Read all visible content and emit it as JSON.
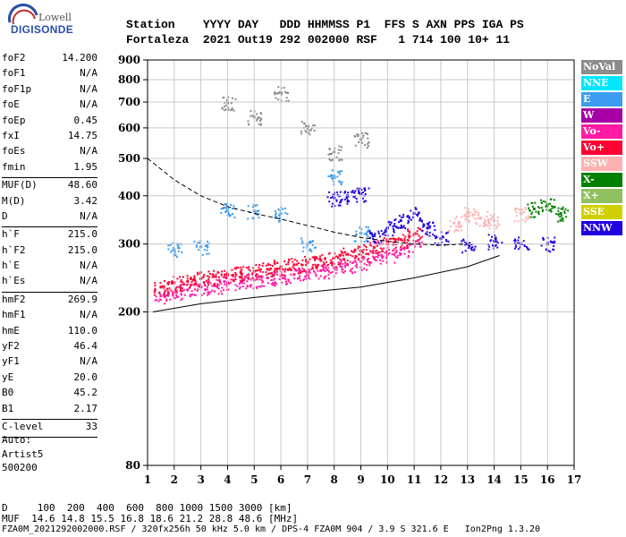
{
  "logo": {
    "line1": "Lowell",
    "line2": "DIGISONDE"
  },
  "header": {
    "labels": "Station    YYYY DAY   DDD HHMMSS P1  FFS S AXN PPS IGA PS",
    "values": "Fortaleza  2021 Out19 292 002000 RSF   1 714 100 10+ 11"
  },
  "params": [
    {
      "name": "foF2",
      "value": "14.200"
    },
    {
      "name": "foF1",
      "value": "N/A"
    },
    {
      "name": "foF1p",
      "value": "N/A"
    },
    {
      "name": "foE",
      "value": "N/A"
    },
    {
      "name": "foEp",
      "value": "0.45"
    },
    {
      "name": "fxI",
      "value": "14.75"
    },
    {
      "name": "foEs",
      "value": "N/A"
    },
    {
      "name": "fmin",
      "value": "1.95"
    },
    {
      "sep": true
    },
    {
      "name": "MUF(D)",
      "value": "48.60"
    },
    {
      "name": "M(D)",
      "value": "3.42"
    },
    {
      "name": "D",
      "value": "N/A"
    },
    {
      "sep": true
    },
    {
      "name": "h`F",
      "value": "215.0"
    },
    {
      "name": "h`F2",
      "value": "215.0"
    },
    {
      "name": "h`E",
      "value": "N/A"
    },
    {
      "name": "h`Es",
      "value": "N/A"
    },
    {
      "sep": true
    },
    {
      "name": "hmF2",
      "value": "269.9"
    },
    {
      "name": "hmF1",
      "value": "N/A"
    },
    {
      "name": "hmE",
      "value": "110.0"
    },
    {
      "name": "yF2",
      "value": "46.4"
    },
    {
      "name": "yF1",
      "value": "N/A"
    },
    {
      "name": "yE",
      "value": "20.0"
    },
    {
      "name": "B0",
      "value": "45.2"
    },
    {
      "name": "B1",
      "value": "2.17"
    },
    {
      "sep": true
    },
    {
      "name": "C-level",
      "value": "33"
    },
    {
      "sep": true
    }
  ],
  "auto": {
    "line1": "Auto:",
    "line2": "Artist5",
    "line3": "500200"
  },
  "legend": [
    {
      "label": "NoVal",
      "color": "#8c8c8c"
    },
    {
      "label": "NNE",
      "color": "#00e6ff"
    },
    {
      "label": "E",
      "color": "#3c9cf0"
    },
    {
      "label": "W",
      "color": "#a600a6"
    },
    {
      "label": "Vo-",
      "color": "#ff1aa3"
    },
    {
      "label": "Vo+",
      "color": "#ff0033"
    },
    {
      "label": "SSW",
      "color": "#ffb0b0"
    },
    {
      "label": "X-",
      "color": "#008000"
    },
    {
      "label": "X+",
      "color": "#90c060"
    },
    {
      "label": "SSE",
      "color": "#d0d000"
    },
    {
      "label": "NNW",
      "color": "#2000e0"
    }
  ],
  "footer": {
    "line1": "D     100  200  400  600  800 1000 1500 3000 [km]",
    "line2": "MUF  14.6 14.8 15.5 16.8 18.6 21.2 28.8 48.6 [MHz]",
    "line3": "FZA0M_2021292002000.RSF / 320fx256h 50 kHz 5.0 km / DPS-4 FZA0M 904 / 3.9 S 321.6 E   Ion2Png 1.3.20"
  },
  "chart_data": {
    "type": "scatter",
    "title": "",
    "xlabel": "",
    "ylabel": "",
    "xlim": [
      1,
      17
    ],
    "ylim": [
      80,
      900
    ],
    "yscale": "log",
    "x_ticks": [
      1,
      2,
      3,
      4,
      5,
      6,
      7,
      8,
      9,
      10,
      11,
      12,
      13,
      14,
      15,
      16,
      17
    ],
    "y_ticks": [
      80,
      200,
      300,
      400,
      500,
      600,
      700,
      800,
      900
    ],
    "grid": true,
    "series": [
      {
        "name": "Vo-",
        "points": [
          [
            1.5,
            220
          ],
          [
            2,
            225
          ],
          [
            2.5,
            228
          ],
          [
            3,
            232
          ],
          [
            3.5,
            234
          ],
          [
            4,
            238
          ],
          [
            4.5,
            240
          ],
          [
            5,
            242
          ],
          [
            5.5,
            245
          ],
          [
            6,
            248
          ],
          [
            6.5,
            250
          ],
          [
            7,
            253
          ],
          [
            7.5,
            256
          ],
          [
            8,
            260
          ],
          [
            8.5,
            265
          ],
          [
            9,
            270
          ],
          [
            9.5,
            276
          ],
          [
            10,
            282
          ],
          [
            10.5,
            290
          ],
          [
            11,
            300
          ]
        ]
      },
      {
        "name": "Vo+",
        "points": [
          [
            1.5,
            232
          ],
          [
            2,
            238
          ],
          [
            2.5,
            240
          ],
          [
            3,
            244
          ],
          [
            3.5,
            247
          ],
          [
            4,
            250
          ],
          [
            4.5,
            253
          ],
          [
            5,
            255
          ],
          [
            5.5,
            258
          ],
          [
            6,
            262
          ],
          [
            6.5,
            265
          ],
          [
            7,
            268
          ],
          [
            7.5,
            272
          ],
          [
            8,
            276
          ],
          [
            8.5,
            282
          ],
          [
            9,
            288
          ],
          [
            9.5,
            294
          ],
          [
            10,
            300
          ],
          [
            10.5,
            308
          ],
          [
            11,
            318
          ]
        ]
      },
      {
        "name": "NNW",
        "points": [
          [
            8,
            395
          ],
          [
            8.5,
            400
          ],
          [
            9,
            405
          ],
          [
            9.5,
            315
          ],
          [
            10,
            330
          ],
          [
            10.5,
            345
          ],
          [
            11,
            360
          ],
          [
            11.5,
            330
          ],
          [
            12,
            310
          ],
          [
            13,
            300
          ],
          [
            14,
            305
          ],
          [
            15,
            300
          ],
          [
            16,
            300
          ]
        ]
      },
      {
        "name": "E",
        "points": [
          [
            2,
            290
          ],
          [
            3,
            295
          ],
          [
            4,
            370
          ],
          [
            5,
            365
          ],
          [
            6,
            360
          ],
          [
            7,
            300
          ],
          [
            8,
            450
          ],
          [
            9,
            320
          ]
        ]
      },
      {
        "name": "SSW",
        "points": [
          [
            12.5,
            340
          ],
          [
            13,
            360
          ],
          [
            13.5,
            350
          ],
          [
            14,
            345
          ],
          [
            15,
            360
          ]
        ]
      },
      {
        "name": "X-",
        "points": [
          [
            15.5,
            370
          ],
          [
            16,
            380
          ],
          [
            16.5,
            360
          ]
        ]
      },
      {
        "name": "NoVal",
        "points": [
          [
            4,
            700
          ],
          [
            5,
            640
          ],
          [
            6,
            740
          ],
          [
            7,
            600
          ],
          [
            8,
            520
          ],
          [
            9,
            560
          ]
        ]
      }
    ]
  }
}
